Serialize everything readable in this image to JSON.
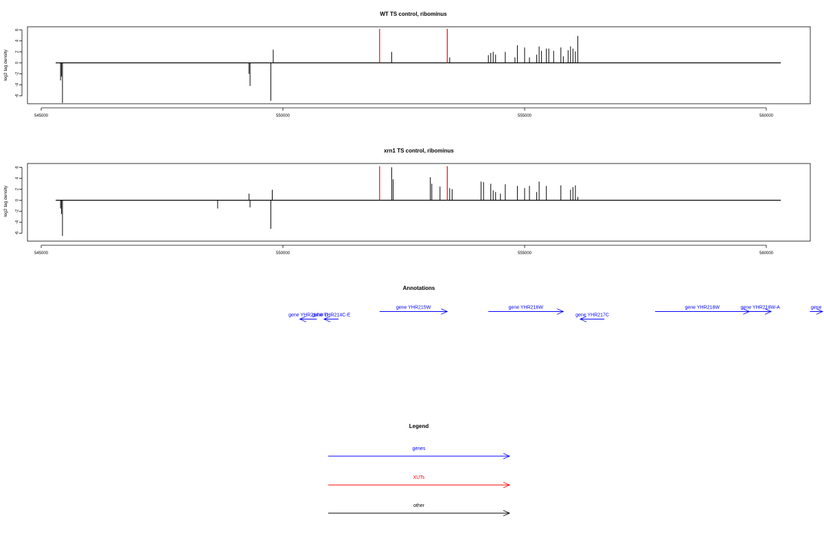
{
  "colors": {
    "gene": "#0000ff",
    "xut": "#ff0000",
    "other": "#000000",
    "signal": "#000000"
  },
  "chart_data": [
    {
      "type": "bar",
      "title": "WT TS control, ribominus",
      "ylabel": "log2 tag density",
      "xlim": [
        544700,
        560900
      ],
      "ylim": [
        -7.5,
        6.5
      ],
      "xticks": [
        545000,
        550000,
        555000,
        560000
      ],
      "xtick_labels": [
        "545000",
        "550000",
        "555000",
        "560000"
      ],
      "yticks": [
        6,
        4,
        2,
        0,
        -2,
        -4,
        -6
      ],
      "ytick_labels": [
        "6",
        "4",
        "2",
        "0",
        "-2",
        "-4",
        "-6"
      ],
      "baseline": {
        "x": [
          545300,
          560300
        ],
        "y": 0
      },
      "series": [
        {
          "color": "#000000",
          "x": [
            545400,
            545420,
            545440,
            549300,
            549320,
            549750,
            549800,
            552250,
            553450,
            554250,
            554300,
            554350,
            554400,
            554600,
            554800,
            554850,
            555000,
            555100,
            555250,
            555300,
            555350,
            555450,
            555500,
            555600,
            555750,
            555800,
            555900,
            555950,
            556000,
            556050,
            556100
          ],
          "values": [
            -3.2,
            -2.5,
            -7.3,
            -2.0,
            -4.2,
            -6.9,
            2.4,
            2.0,
            1.0,
            1.4,
            1.8,
            2.0,
            1.5,
            2.0,
            1.0,
            3.2,
            2.8,
            1.0,
            1.5,
            3.0,
            2.2,
            2.6,
            2.6,
            2.2,
            2.8,
            1.2,
            2.3,
            3.0,
            2.6,
            2.1,
            4.9
          ]
        },
        {
          "color": "#ff0000",
          "x": [
            552000,
            553400
          ],
          "values": [
            6.2,
            6.2
          ]
        }
      ]
    },
    {
      "type": "bar",
      "title": "xrn1 TS control, ribominus",
      "ylabel": "log2 tag density",
      "xlim": [
        544700,
        560900
      ],
      "ylim": [
        -7.5,
        6.5
      ],
      "xticks": [
        545000,
        550000,
        555000,
        560000
      ],
      "xtick_labels": [
        "545000",
        "550000",
        "555000",
        "560000"
      ],
      "yticks": [
        6,
        4,
        2,
        0,
        -2,
        -4,
        -6
      ],
      "ytick_labels": [
        "6",
        "4",
        "2",
        "0",
        "-2",
        "-4",
        "-6"
      ],
      "baseline": {
        "x": [
          545300,
          560300
        ],
        "y": 0
      },
      "series": [
        {
          "color": "#000000",
          "x": [
            545400,
            545420,
            545440,
            548650,
            549300,
            549320,
            549750,
            549780,
            550000,
            552250,
            552280,
            553050,
            553080,
            553250,
            553450,
            553500,
            554100,
            554150,
            554300,
            554350,
            554400,
            554500,
            554600,
            554850,
            555000,
            555100,
            555250,
            555300,
            555450,
            555750,
            555950,
            556000,
            556050,
            556100
          ],
          "values": [
            -1.5,
            -2.5,
            -6.5,
            -1.5,
            1.2,
            -1.3,
            -5.2,
            1.9,
            0.0,
            6.0,
            3.8,
            4.2,
            3.0,
            2.5,
            2.2,
            2.0,
            3.4,
            3.3,
            3.0,
            1.8,
            1.5,
            1.2,
            2.9,
            2.6,
            2.2,
            2.6,
            1.5,
            3.4,
            2.6,
            2.7,
            1.9,
            2.4,
            2.7,
            0.6
          ]
        },
        {
          "color": "#ff0000",
          "x": [
            552000,
            553400
          ],
          "values": [
            6.2,
            6.2
          ]
        }
      ]
    }
  ],
  "annotations": {
    "title": "Annotations",
    "genes": [
      {
        "label": "gene YHR214W-D",
        "x_start": 550700,
        "x_end": 550350,
        "row": 2
      },
      {
        "label": "gene YHR214C-E",
        "x_start": 551150,
        "x_end": 550850,
        "row": 2
      },
      {
        "label": "gene YHR215W",
        "x_start": 552000,
        "x_end": 553400,
        "row": 1
      },
      {
        "label": "gene YHR216W",
        "x_start": 554250,
        "x_end": 555800,
        "row": 1
      },
      {
        "label": "gene YHR217C",
        "x_start": 556650,
        "x_end": 556150,
        "row": 2
      },
      {
        "label": "gene YHR218W",
        "x_start": 557700,
        "x_end": 559650,
        "row": 1
      },
      {
        "label": "gene YHR218W-A",
        "x_start": 559650,
        "x_end": 560100,
        "row": 1
      },
      {
        "label": "gene",
        "x_start": 560900,
        "x_end": 561200,
        "row": 1
      }
    ]
  },
  "legend": {
    "title": "Legend",
    "items": [
      {
        "label": "genes",
        "color": "#0000ff"
      },
      {
        "label": "XUTs",
        "color": "#ff0000"
      },
      {
        "label": "other",
        "color": "#000000"
      }
    ]
  }
}
